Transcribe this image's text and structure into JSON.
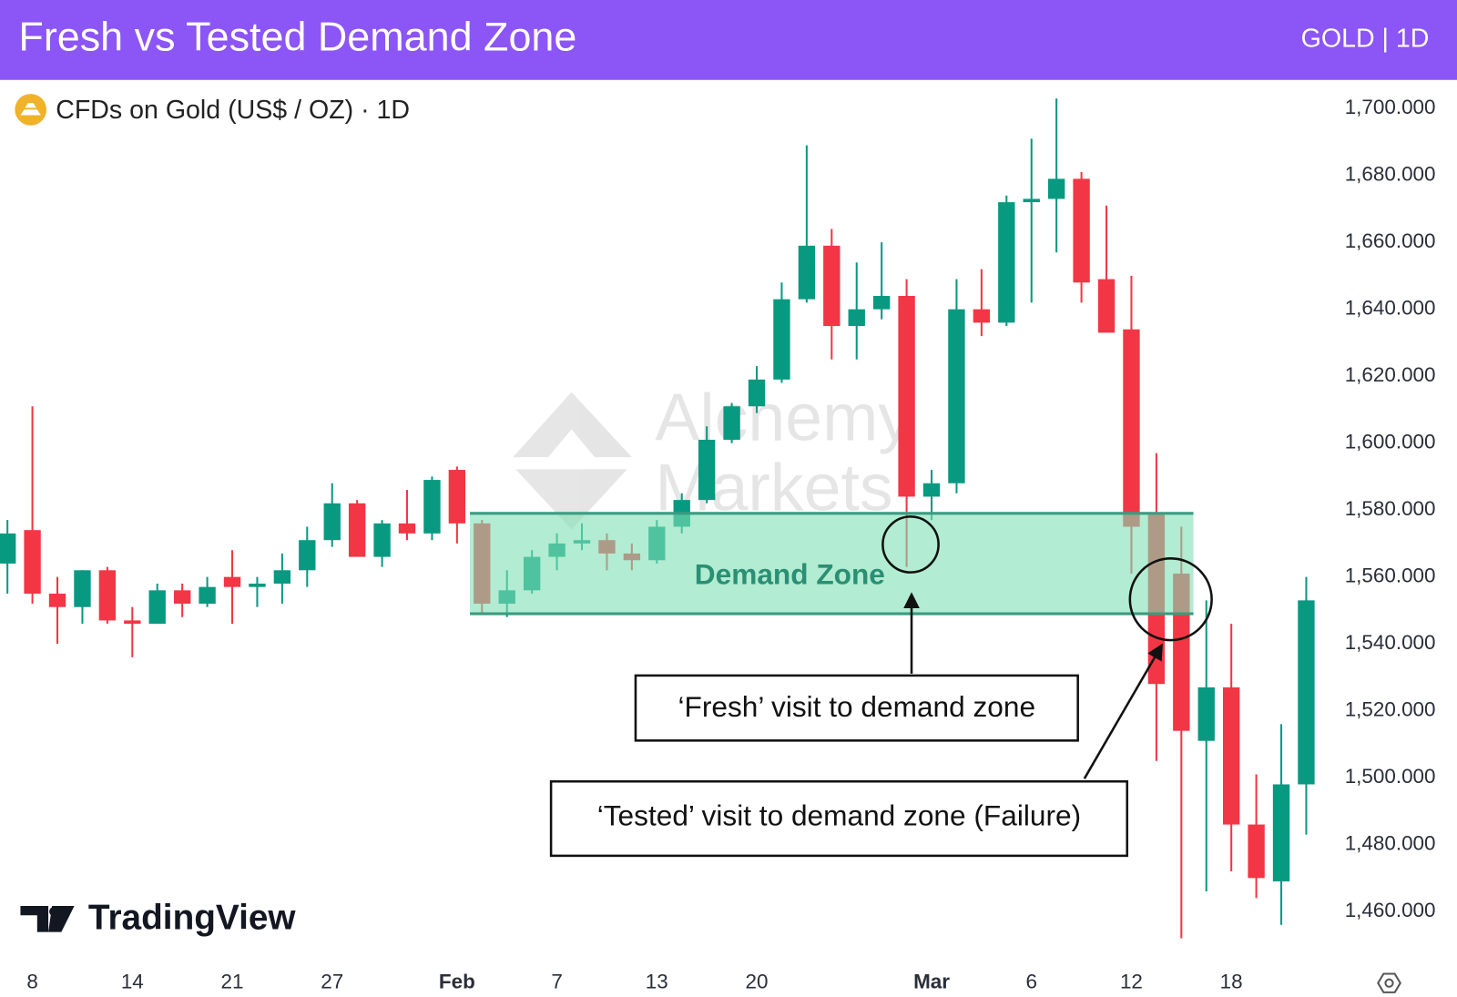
{
  "chart_data": {
    "type": "candlestick",
    "title": "Fresh vs Tested Demand Zone",
    "badge": "GOLD | 1D",
    "subtitle": "CFDs on Gold (US$ / OZ) · 1D",
    "watermark": "TradingView",
    "brand_watermark": [
      "Alchemy",
      "Markets"
    ],
    "categories": [
      null,
      "8",
      null,
      null,
      null,
      "14",
      null,
      null,
      null,
      "21",
      null,
      null,
      null,
      "27",
      null,
      null,
      null,
      null,
      "Feb",
      null,
      null,
      null,
      "7",
      null,
      null,
      null,
      "13",
      null,
      null,
      null,
      "20",
      null,
      null,
      null,
      null,
      null,
      null,
      "Mar",
      null,
      null,
      null,
      "6",
      null,
      null,
      null,
      "12",
      null,
      null,
      null,
      "18",
      null,
      null,
      null
    ],
    "open": [
      1564,
      1574,
      1555,
      1551,
      1562,
      1547,
      1546,
      1556,
      1552,
      1560,
      1557,
      1558,
      1562,
      1571,
      1582,
      1566,
      1576,
      1573,
      1592,
      1576,
      1552,
      1556,
      1566,
      1570,
      1571,
      1567,
      1565,
      1575,
      1583,
      1601,
      1611,
      1619,
      1643,
      1659,
      1635,
      1640,
      1644,
      1584,
      1588,
      1640,
      1636,
      1672,
      1673,
      1679,
      1649,
      1634,
      1579,
      1561,
      1511,
      1527,
      1486,
      1469,
      1498
    ],
    "high": [
      1577,
      1611,
      1560,
      1562,
      1563,
      1551,
      1558,
      1558,
      1560,
      1568,
      1560,
      1567,
      1575,
      1588,
      1583,
      1577,
      1586,
      1590,
      1593,
      1577,
      1562,
      1568,
      1573,
      1576,
      1573,
      1570,
      1577,
      1585,
      1605,
      1612,
      1623,
      1648,
      1689,
      1664,
      1654,
      1660,
      1649,
      1592,
      1649,
      1652,
      1674,
      1691,
      1703,
      1681,
      1671,
      1650,
      1597,
      1575,
      1553,
      1546,
      1501,
      1516,
      1560
    ],
    "low": [
      1555,
      1552,
      1540,
      1546,
      1546,
      1536,
      1546,
      1548,
      1551,
      1546,
      1551,
      1552,
      1557,
      1569,
      1566,
      1563,
      1571,
      1571,
      1570,
      1549,
      1548,
      1555,
      1562,
      1568,
      1562,
      1562,
      1564,
      1573,
      1582,
      1600,
      1609,
      1618,
      1642,
      1625,
      1625,
      1637,
      1563,
      1577,
      1585,
      1632,
      1635,
      1642,
      1657,
      1642,
      1633,
      1561,
      1505,
      1452,
      1466,
      1472,
      1464,
      1456,
      1483
    ],
    "close": [
      1573,
      1555,
      1551,
      1562,
      1547,
      1546,
      1556,
      1552,
      1557,
      1557,
      1558,
      1562,
      1571,
      1582,
      1566,
      1576,
      1573,
      1589,
      1576,
      1552,
      1556,
      1566,
      1570,
      1571,
      1567,
      1565,
      1575,
      1583,
      1601,
      1611,
      1619,
      1643,
      1659,
      1635,
      1640,
      1644,
      1584,
      1588,
      1640,
      1636,
      1672,
      1673,
      1679,
      1648,
      1633,
      1575,
      1528,
      1514,
      1527,
      1486,
      1470,
      1498,
      1553
    ],
    "up_color": "#089981",
    "down_color": "#f23645",
    "ylim": [
      1445,
      1708
    ],
    "yticks": [
      {
        "value": 1460,
        "label": "1,460.000"
      },
      {
        "value": 1480,
        "label": "1,480.000"
      },
      {
        "value": 1500,
        "label": "1,500.000"
      },
      {
        "value": 1520,
        "label": "1,520.000"
      },
      {
        "value": 1540,
        "label": "1,540.000"
      },
      {
        "value": 1560,
        "label": "1,560.000"
      },
      {
        "value": 1580,
        "label": "1,580.000"
      },
      {
        "value": 1600,
        "label": "1,600.000"
      },
      {
        "value": 1620,
        "label": "1,620.000"
      },
      {
        "value": 1640,
        "label": "1,640.000"
      },
      {
        "value": 1660,
        "label": "1,660.000"
      },
      {
        "value": 1680,
        "label": "1,680.000"
      },
      {
        "value": 1700,
        "label": "1,700.000"
      }
    ],
    "zone": {
      "label": "Demand Zone",
      "low": 1549,
      "high": 1579,
      "from": 19,
      "to": 47
    },
    "annotations": [
      "‘Fresh’ visit to demand zone",
      "‘Tested’ visit to demand zone (Failure)"
    ]
  }
}
